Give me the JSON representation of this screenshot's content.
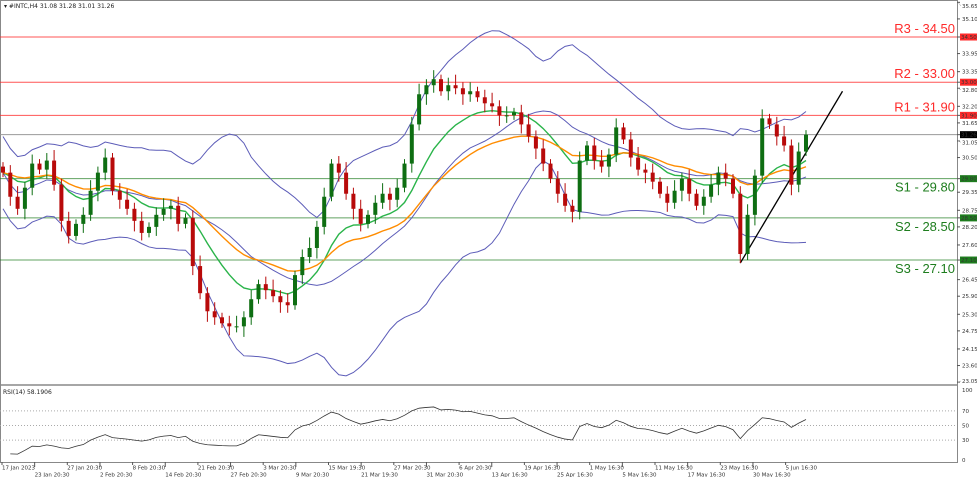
{
  "header": {
    "symbol": "#INTC,H4",
    "ohlc": "31.08 31.28 31.01 31.26"
  },
  "rsi_label": "RSI(14) 58.1906",
  "colors": {
    "bull": "#0e6e12",
    "bear": "#b80a0a",
    "resistance": "#ff2a2a",
    "support": "#1e7d1e",
    "bollinger": "#5c5cb8",
    "ma_fast": "#2ab44a",
    "ma_slow": "#ff8c00",
    "trendline": "#000000",
    "current_price": "#000000"
  },
  "chart_data": {
    "type": "candlestick",
    "title": "",
    "price_axis": {
      "ylim": [
        23.05,
        35.65
      ],
      "ticks": [
        "35.65",
        "35.10",
        "34.50",
        "33.95",
        "33.35",
        "33.00",
        "32.80",
        "32.20",
        "31.90",
        "31.65",
        "31.26",
        "31.05",
        "30.50",
        "29.80",
        "29.35",
        "28.75",
        "28.50",
        "28.20",
        "27.60",
        "27.10",
        "26.45",
        "25.90",
        "25.30",
        "24.75",
        "24.15",
        "23.60",
        "23.05"
      ]
    },
    "time_axis": {
      "ticks": [
        "17 Jan 2023",
        "23 Jan 20:30",
        "27 Jan 20:30",
        "2 Feb 20:30",
        "8 Feb 20:30",
        "14 Feb 20:30",
        "21 Feb 20:30",
        "27 Feb 20:30",
        "3 Mar 20:30",
        "9 Mar 20:30",
        "15 Mar 19:30",
        "21 Mar 19:30",
        "27 Mar 20:30",
        "31 Mar 20:30",
        "6 Apr 20:30",
        "13 Apr 16:30",
        "19 Apr 16:30",
        "25 Apr 16:30",
        "1 May 16:30",
        "5 May 16:30",
        "11 May 16:30",
        "17 May 16:30",
        "23 May 16:30",
        "30 May 16:30",
        "5 Jun 16:30"
      ]
    },
    "closes": [
      30.0,
      29.2,
      28.8,
      29.5,
      30.3,
      30.1,
      30.4,
      29.6,
      28.4,
      27.9,
      28.3,
      28.6,
      29.4,
      30.0,
      30.5,
      29.4,
      29.1,
      28.8,
      28.4,
      28.0,
      28.2,
      28.6,
      28.8,
      28.9,
      28.3,
      28.5,
      26.9,
      26.0,
      25.4,
      25.2,
      25.0,
      24.9,
      24.9,
      25.2,
      25.8,
      26.3,
      26.1,
      25.9,
      25.7,
      25.6,
      26.6,
      27.2,
      27.5,
      28.2,
      29.2,
      30.3,
      30.0,
      29.3,
      28.8,
      28.3,
      28.6,
      29.0,
      29.3,
      29.1,
      29.5,
      30.3,
      31.6,
      32.6,
      32.9,
      33.1,
      32.7,
      32.9,
      32.8,
      32.6,
      32.7,
      32.5,
      32.3,
      32.2,
      31.9,
      31.9,
      32.0,
      31.6,
      31.2,
      30.8,
      30.3,
      29.8,
      29.3,
      28.9,
      28.7,
      30.4,
      30.9,
      30.4,
      30.2,
      30.6,
      31.5,
      31.1,
      30.5,
      30.1,
      30.0,
      29.7,
      29.3,
      29.0,
      29.4,
      29.8,
      29.3,
      28.9,
      29.2,
      29.6,
      30.0,
      29.8,
      29.3,
      27.3,
      28.6,
      29.9,
      31.8,
      31.6,
      31.2,
      30.9,
      29.6,
      30.7,
      31.26
    ],
    "current_price": 31.26,
    "levels": [
      {
        "label": "R3 - 34.50",
        "value": 34.5,
        "tag": "34.50",
        "kind": "resistance"
      },
      {
        "label": "R2 - 33.00",
        "value": 33.0,
        "tag": "33.00",
        "kind": "resistance"
      },
      {
        "label": "R1 - 31.90",
        "value": 31.9,
        "tag": "31.90",
        "kind": "resistance"
      },
      {
        "label": "S1 - 29.80",
        "value": 29.8,
        "tag": "29.80",
        "kind": "support"
      },
      {
        "label": "S2 - 28.50",
        "value": 28.5,
        "tag": "28.50",
        "kind": "support"
      },
      {
        "label": "S3 - 27.10",
        "value": 27.1,
        "tag": "27.10",
        "kind": "support"
      }
    ],
    "indicators": [
      "Bollinger Bands (20)",
      "Moving Average fast",
      "Moving Average slow"
    ],
    "trendline": {
      "from": {
        "candle": 101,
        "price": 27.0
      },
      "to": {
        "candle": 115,
        "price": 32.7
      }
    },
    "rsi": {
      "period": 14,
      "value": 58.1906,
      "ylim": [
        0,
        100
      ],
      "ticks": [
        "100",
        "70",
        "50",
        "30",
        "0"
      ],
      "levels": [
        70,
        50,
        30
      ]
    }
  }
}
